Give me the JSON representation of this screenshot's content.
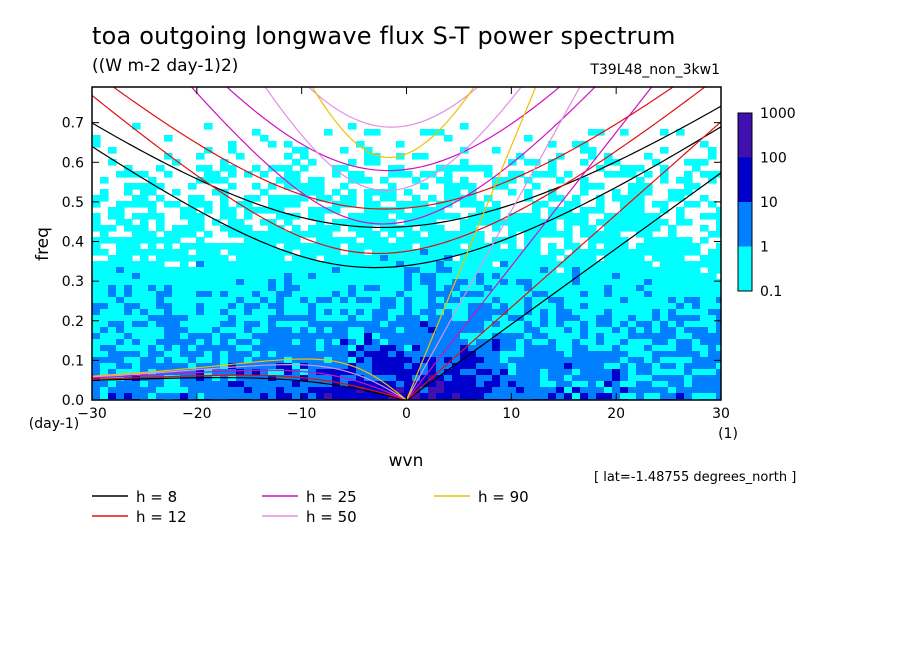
{
  "header": {
    "title": "toa outgoing longwave flux S-T power spectrum",
    "units": "((W m-2 day-1)2)",
    "experiment": "T39L48_non_3kw1",
    "lat_note": "[ lat=-1.48755 degrees_north ]"
  },
  "chart_data": {
    "type": "heatmap",
    "title": "toa outgoing longwave flux S-T power spectrum",
    "subtitle": "((W m-2 day-1)2)",
    "xlabel": "wvn",
    "ylabel": "freq",
    "x_unit_label": "(1)",
    "y_unit_label": "(day-1)",
    "xlim": [
      -30,
      30
    ],
    "ylim": [
      0.0,
      0.79
    ],
    "xticks": [
      -30,
      -20,
      -10,
      0,
      10,
      20,
      30
    ],
    "yticks": [
      0.0,
      0.1,
      0.2,
      0.3,
      0.4,
      0.5,
      0.6,
      0.7
    ],
    "xtick_labels": [
      "−30",
      "−20",
      "−10",
      "0",
      "10",
      "20",
      "30"
    ],
    "ytick_labels": [
      "0.0",
      "0.1",
      "0.2",
      "0.3",
      "0.4",
      "0.5",
      "0.6",
      "0.7"
    ],
    "colorbar": {
      "levels": [
        "0.1",
        "1",
        "10",
        "100",
        "1000"
      ],
      "colors": [
        "#00ffff",
        "#0080ff",
        "#0000cc",
        "#4010b0"
      ]
    },
    "dispersion_curves": [
      {
        "label": "h =  8",
        "color": "#000000"
      },
      {
        "label": "h = 12",
        "color": "#e01010"
      },
      {
        "label": "h = 25",
        "color": "#d010c0"
      },
      {
        "label": "h = 50",
        "color": "#e090e0"
      },
      {
        "label": "h = 90",
        "color": "#f0c000"
      }
    ]
  }
}
